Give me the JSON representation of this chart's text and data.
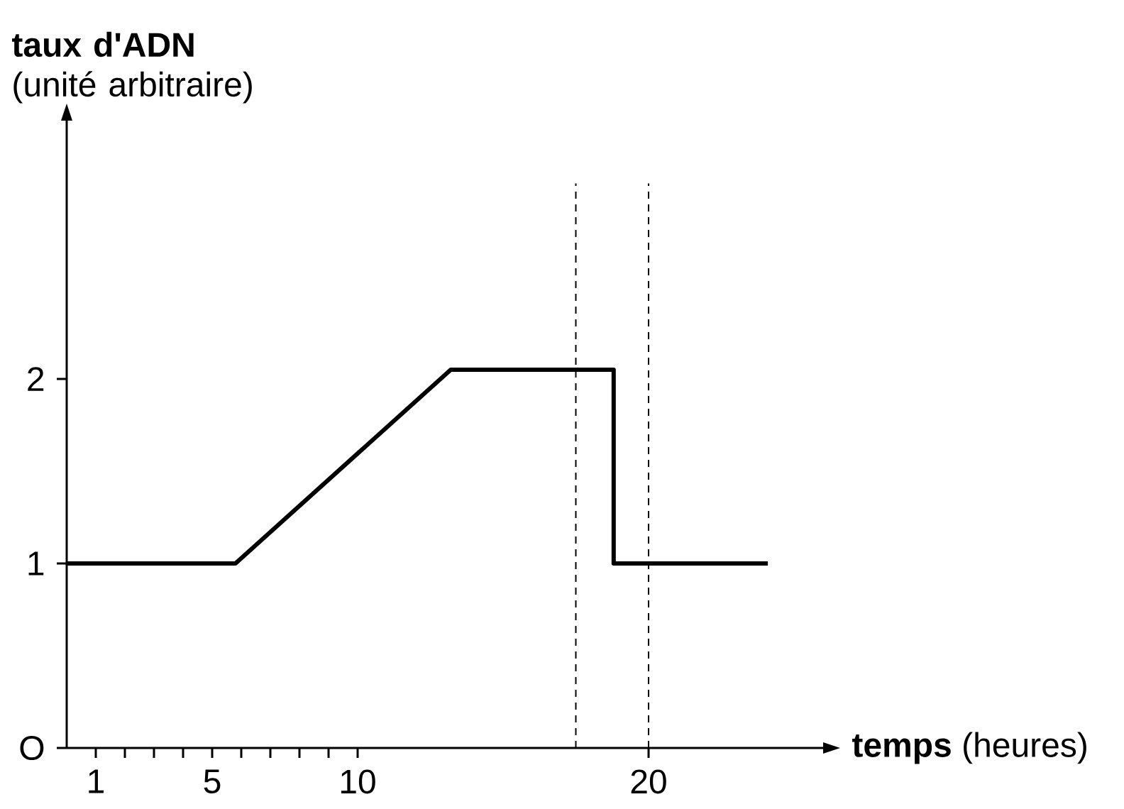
{
  "chart_data": {
    "type": "line",
    "xlabel": "**temps** (heures)",
    "ylabel": "**taux d'ADN** (unité arbitraire)",
    "x": [
      0,
      5.8,
      13.2,
      18.8,
      18.8,
      24.1
    ],
    "series": [
      {
        "color": "#000000",
        "values": [
          1,
          1,
          2.05,
          2.05,
          1,
          1
        ]
      }
    ],
    "xlim": [
      0,
      26
    ],
    "ylim": [
      0,
      3.4
    ],
    "xticks": [
      {
        "value": 1,
        "label": "1"
      },
      {
        "value": 2,
        "label": null
      },
      {
        "value": 3,
        "label": null
      },
      {
        "value": 4,
        "label": null
      },
      {
        "value": 5,
        "label": "5"
      },
      {
        "value": 6,
        "label": null
      },
      {
        "value": 7,
        "label": null
      },
      {
        "value": 8,
        "label": null
      },
      {
        "value": 9,
        "label": null
      },
      {
        "value": 10,
        "label": "10"
      },
      {
        "value": 20,
        "label": "20"
      }
    ],
    "yticks": [
      {
        "value": 0,
        "label": "O"
      },
      1,
      2
    ],
    "ref_lines": [
      {
        "axis": "x",
        "value": 17.5,
        "color": "#000000",
        "line_style": "dashed"
      },
      {
        "axis": "x",
        "value": 20,
        "color": "#000000",
        "line_style": "dashed"
      }
    ],
    "marker": "none",
    "line_style": "solid",
    "grid": false,
    "legend": false
  }
}
